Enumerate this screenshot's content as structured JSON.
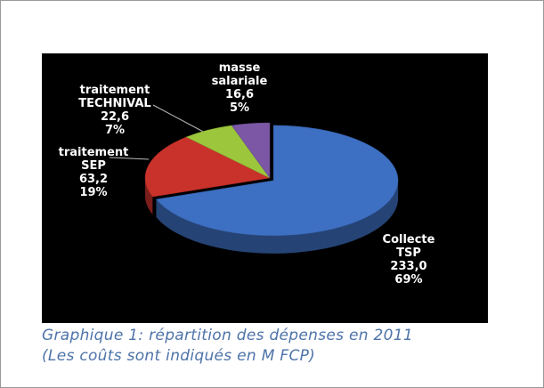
{
  "chart_data": {
    "type": "pie",
    "title": "Graphique 1: répartition des dépenses en 2011",
    "subtitle": "(Les coûts sont indiqués en M FCP)",
    "categories": [
      "Collecte TSP",
      "traitement SEP",
      "traitement TECHNIVAL",
      "masse salariale"
    ],
    "values": [
      233.0,
      63.2,
      22.6,
      16.6
    ],
    "value_labels": [
      "233,0",
      "63,2",
      "22,6",
      "16,6"
    ],
    "shares": [
      69,
      19,
      7,
      5
    ],
    "share_labels": [
      "69%",
      "19%",
      "7%",
      "5%"
    ],
    "colors": [
      "#3d6fc2",
      "#c9322b",
      "#9cc63c",
      "#7b57a6"
    ]
  }
}
